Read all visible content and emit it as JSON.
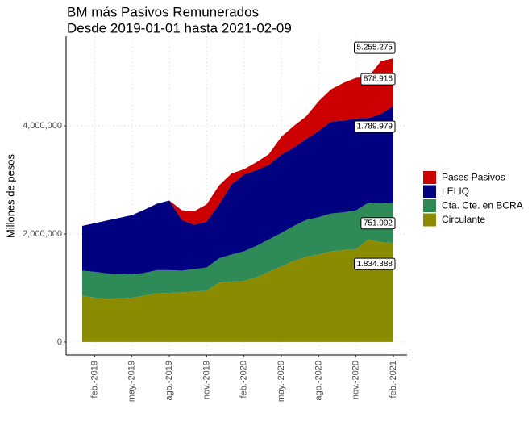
{
  "chart_data": {
    "type": "stacked_area",
    "title": "BM más Pasivos Remunerados",
    "subtitle": "Desde 2019-01-01 hasta 2021-02-09",
    "y_label": "Millones de pesos",
    "x": [
      "2019-01",
      "2019-02",
      "2019-03",
      "2019-04",
      "2019-05",
      "2019-06",
      "2019-07",
      "2019-08",
      "2019-09",
      "2019-10",
      "2019-11",
      "2019-12",
      "2020-01",
      "2020-02",
      "2020-03",
      "2020-04",
      "2020-05",
      "2020-06",
      "2020-07",
      "2020-08",
      "2020-09",
      "2020-10",
      "2020-11",
      "2020-12",
      "2021-01",
      "2021-02"
    ],
    "xlim": [
      "2019-01",
      "2021-02"
    ],
    "xticks": [
      {
        "value": "2019-02",
        "label": "feb.-2019"
      },
      {
        "value": "2019-05",
        "label": "may.-2019"
      },
      {
        "value": "2019-08",
        "label": "ago.-2019"
      },
      {
        "value": "2019-11",
        "label": "nov.-2019"
      },
      {
        "value": "2020-02",
        "label": "feb.-2020"
      },
      {
        "value": "2020-05",
        "label": "may.-2020"
      },
      {
        "value": "2020-08",
        "label": "ago.-2020"
      },
      {
        "value": "2020-11",
        "label": "nov.-2020"
      },
      {
        "value": "2021-02",
        "label": "feb.-2021"
      }
    ],
    "ylim": [
      -240000,
      5660000
    ],
    "yticks": [
      0,
      {
        "value": 2000000,
        "label": "2,000,000"
      },
      {
        "value": 4000000,
        "label": "4,000,000"
      }
    ],
    "grid": true,
    "legend": "right",
    "series": [
      {
        "name": "Circulante",
        "color": "#8b8b00",
        "values": [
          860000,
          820000,
          800000,
          810000,
          820000,
          860000,
          900000,
          910000,
          920000,
          930000,
          950000,
          1100000,
          1120000,
          1130000,
          1200000,
          1300000,
          1400000,
          1500000,
          1580000,
          1620000,
          1680000,
          1700000,
          1720000,
          1900000,
          1850000,
          1834388
        ],
        "value_labels": [
          null,
          null,
          null,
          null,
          null,
          null,
          null,
          null,
          null,
          null,
          null,
          null,
          null,
          null,
          null,
          null,
          null,
          null,
          null,
          null,
          null,
          null,
          null,
          null,
          null,
          "1.834.388"
        ]
      },
      {
        "name": "Cta. Cte. en BCRA",
        "color": "#2e8b57",
        "values": [
          460000,
          480000,
          470000,
          450000,
          430000,
          420000,
          430000,
          420000,
          400000,
          420000,
          430000,
          450000,
          500000,
          550000,
          580000,
          600000,
          620000,
          650000,
          680000,
          690000,
          700000,
          700000,
          720000,
          680000,
          720000,
          751992
        ],
        "value_labels": [
          null,
          null,
          null,
          null,
          null,
          null,
          null,
          null,
          null,
          null,
          null,
          null,
          null,
          null,
          null,
          null,
          null,
          null,
          null,
          null,
          null,
          null,
          null,
          null,
          null,
          "751.992"
        ]
      },
      {
        "name": "LELIQ",
        "color": "#000080",
        "values": [
          830000,
          900000,
          980000,
          1040000,
          1100000,
          1170000,
          1230000,
          1290000,
          940000,
          820000,
          850000,
          1000000,
          1300000,
          1420000,
          1400000,
          1380000,
          1450000,
          1450000,
          1500000,
          1600000,
          1700000,
          1700000,
          1700000,
          1570000,
          1650000,
          1789979
        ],
        "value_labels": [
          null,
          null,
          null,
          null,
          null,
          null,
          null,
          null,
          null,
          null,
          null,
          null,
          null,
          null,
          null,
          null,
          null,
          null,
          null,
          null,
          null,
          null,
          null,
          null,
          null,
          "1.789.979"
        ]
      },
      {
        "name": "Pases Pasivos",
        "color": "#cc0000",
        "values": [
          0,
          0,
          0,
          0,
          0,
          0,
          0,
          0,
          180000,
          250000,
          320000,
          350000,
          200000,
          100000,
          150000,
          200000,
          330000,
          400000,
          420000,
          550000,
          600000,
          700000,
          750000,
          760000,
          980000,
          878916
        ],
        "value_labels": [
          null,
          null,
          null,
          null,
          null,
          null,
          null,
          null,
          null,
          null,
          null,
          null,
          null,
          null,
          null,
          null,
          null,
          null,
          null,
          null,
          null,
          null,
          null,
          null,
          null,
          "878.916"
        ]
      }
    ],
    "total_label": {
      "value": 5255275,
      "label": "5.255.275"
    }
  }
}
